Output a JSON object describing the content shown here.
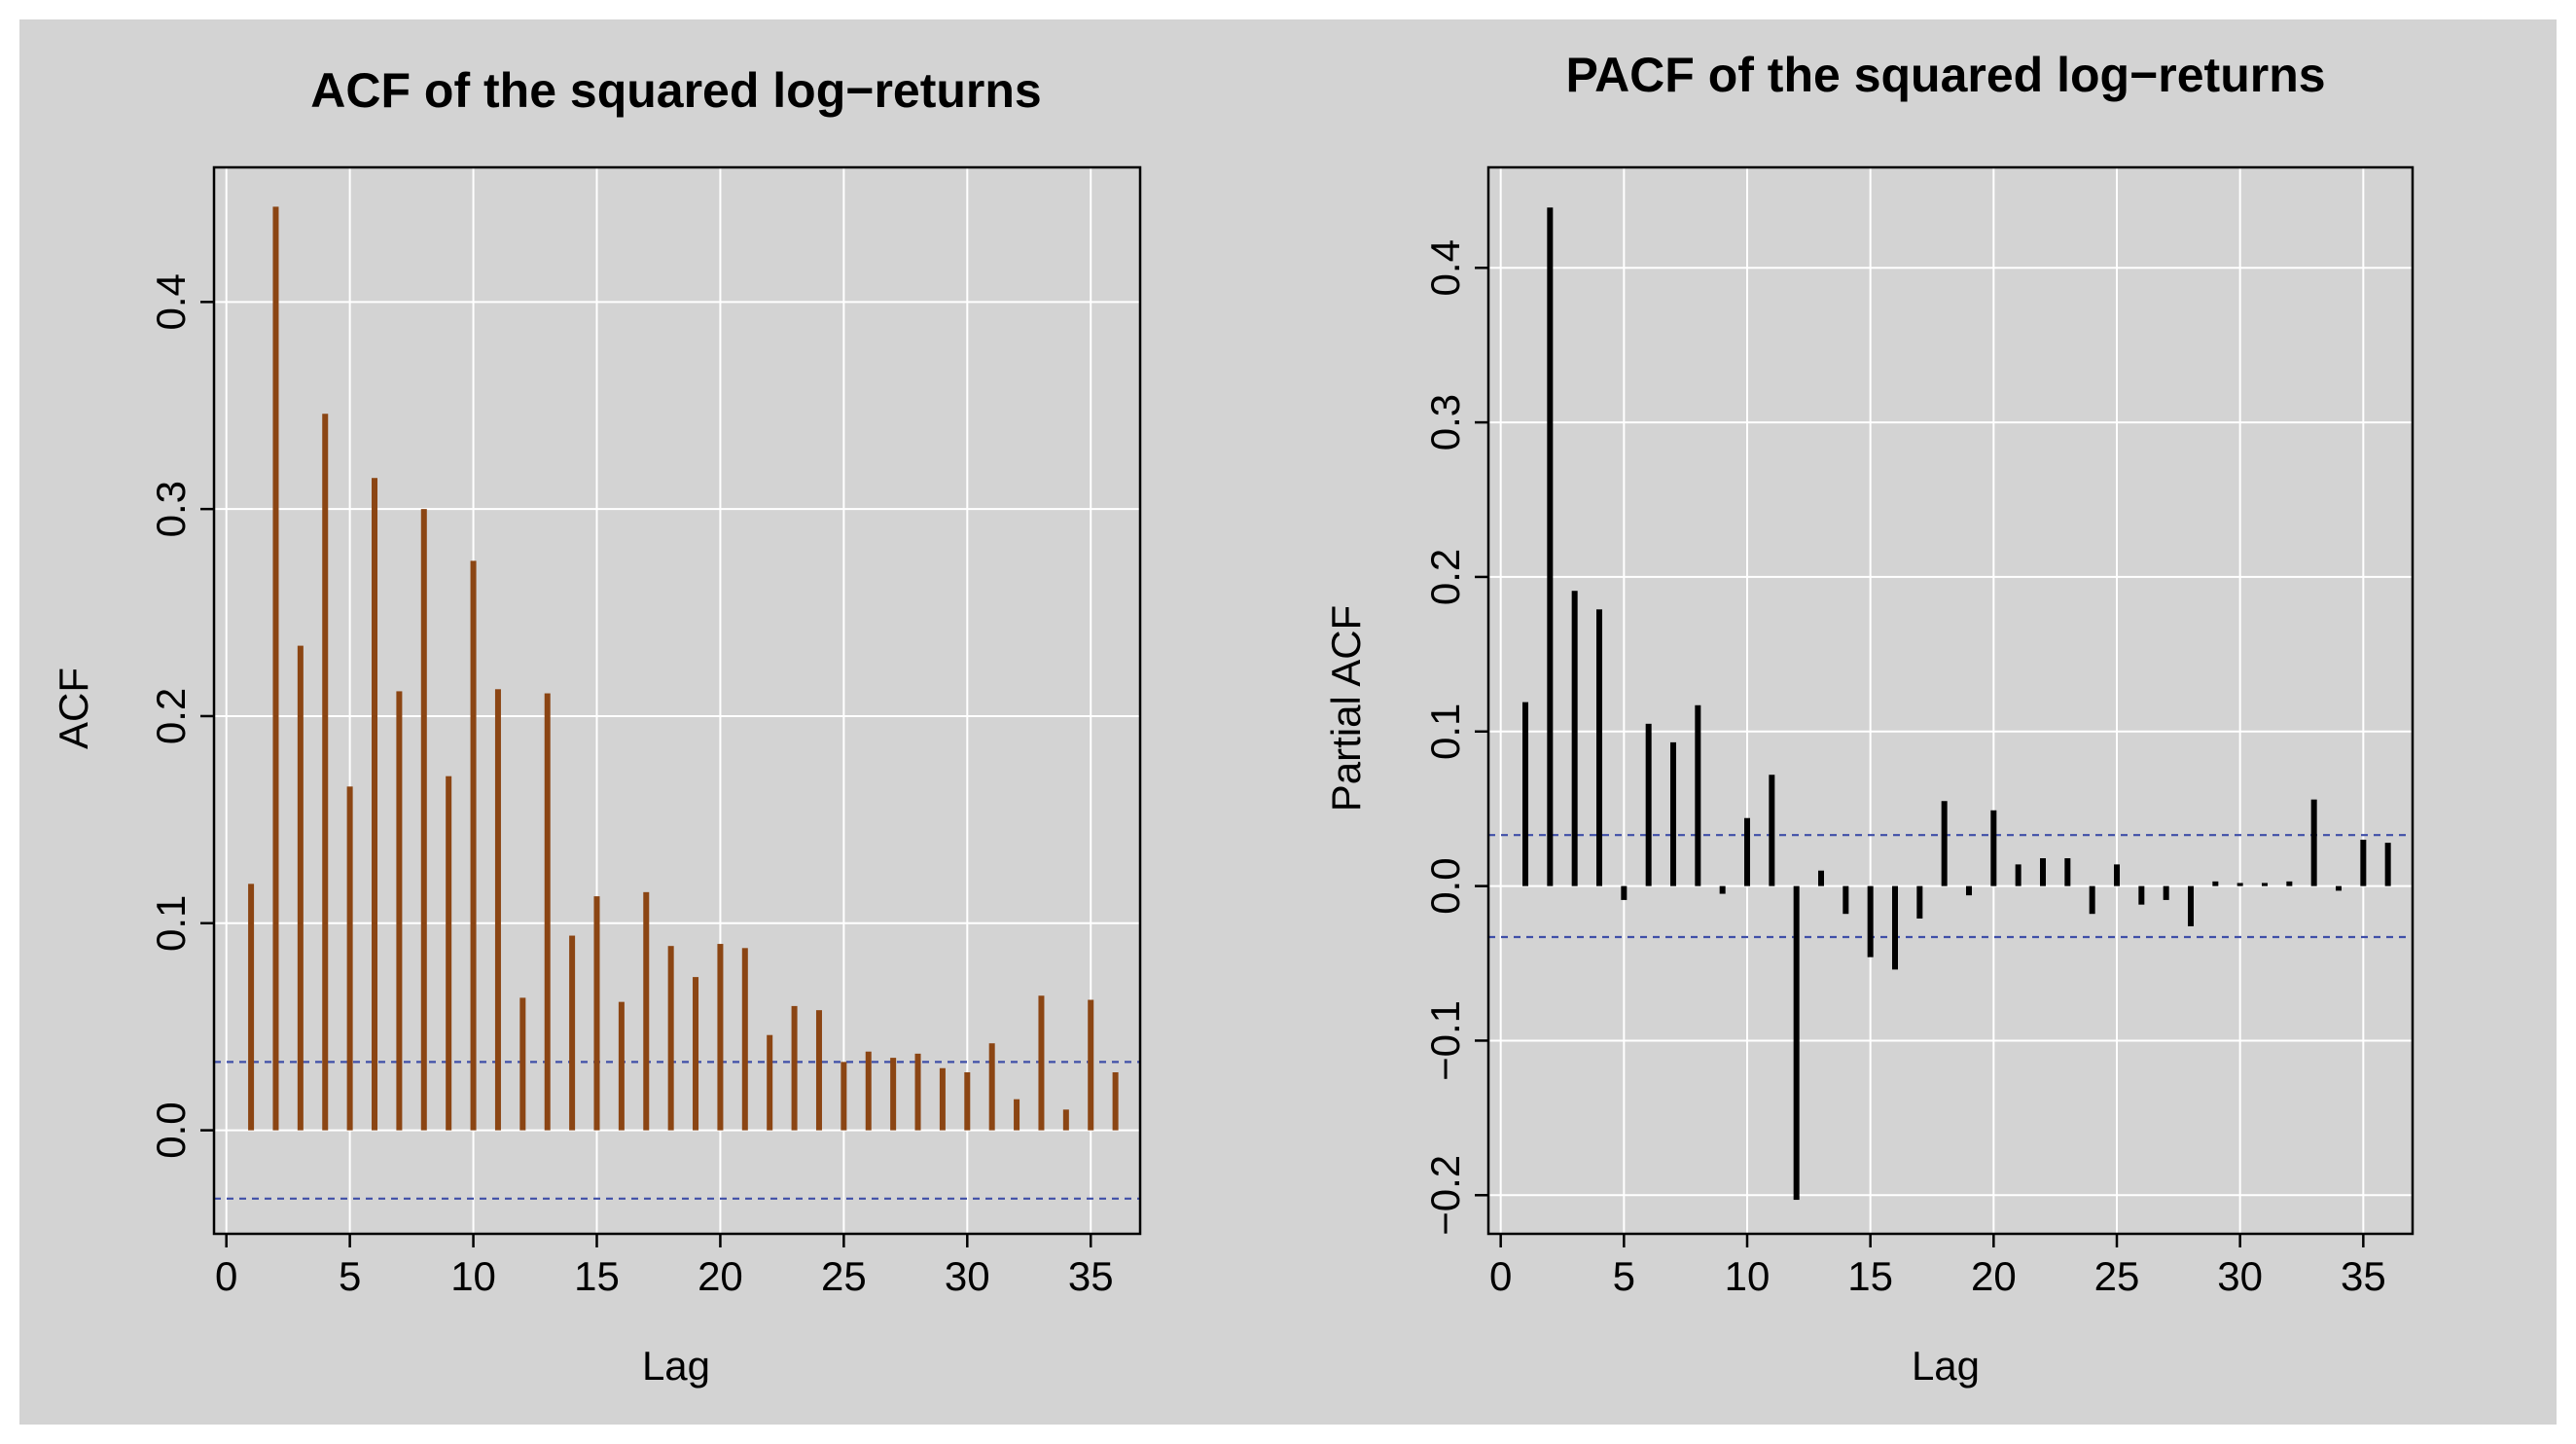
{
  "theme": {
    "page_bg": "#ffffff",
    "figure_bg": "#d3d3d3",
    "grid_color": "#ffffff",
    "acf_bar_color": "#8b4513",
    "pacf_bar_color": "#000000",
    "ci_color": "#3f4fa8"
  },
  "chart_data": [
    {
      "type": "bar",
      "title": "ACF of the squared log−returns",
      "xlabel": "Lag",
      "ylabel": "ACF",
      "xlim": [
        -0.5,
        37
      ],
      "ylim": [
        -0.05,
        0.465
      ],
      "xticks": [
        0,
        5,
        10,
        15,
        20,
        25,
        30,
        35
      ],
      "xtick_labels": [
        "0",
        "5",
        "10",
        "15",
        "20",
        "25",
        "30",
        "35"
      ],
      "yticks": [
        0.0,
        0.1,
        0.2,
        0.3,
        0.4
      ],
      "ytick_labels": [
        "0.0",
        "0.1",
        "0.2",
        "0.3",
        "0.4"
      ],
      "grid": true,
      "confidence_band": 0.033,
      "lags": [
        1,
        2,
        3,
        4,
        5,
        6,
        7,
        8,
        9,
        10,
        11,
        12,
        13,
        14,
        15,
        16,
        17,
        18,
        19,
        20,
        21,
        22,
        23,
        24,
        25,
        26,
        27,
        28,
        29,
        30,
        31,
        32,
        33,
        34,
        35,
        36
      ],
      "values": [
        0.119,
        0.446,
        0.234,
        0.346,
        0.166,
        0.315,
        0.212,
        0.3,
        0.171,
        0.275,
        0.213,
        0.064,
        0.211,
        0.094,
        0.113,
        0.062,
        0.115,
        0.089,
        0.074,
        0.09,
        0.088,
        0.046,
        0.06,
        0.058,
        0.033,
        0.038,
        0.035,
        0.037,
        0.03,
        0.028,
        0.042,
        0.015,
        0.065,
        0.01,
        0.063,
        0.028
      ]
    },
    {
      "type": "bar",
      "title": "PACF of the squared log−returns",
      "xlabel": "Lag",
      "ylabel": "Partial ACF",
      "xlim": [
        -0.5,
        37
      ],
      "ylim": [
        -0.225,
        0.465
      ],
      "xticks": [
        0,
        5,
        10,
        15,
        20,
        25,
        30,
        35
      ],
      "xtick_labels": [
        "0",
        "5",
        "10",
        "15",
        "20",
        "25",
        "30",
        "35"
      ],
      "yticks": [
        -0.2,
        -0.1,
        0.0,
        0.1,
        0.2,
        0.3,
        0.4
      ],
      "ytick_labels": [
        "−0.2",
        "−0.1",
        "0.0",
        "0.1",
        "0.2",
        "0.3",
        "0.4"
      ],
      "grid": true,
      "confidence_band": 0.033,
      "lags": [
        1,
        2,
        3,
        4,
        5,
        6,
        7,
        8,
        9,
        10,
        11,
        12,
        13,
        14,
        15,
        16,
        17,
        18,
        19,
        20,
        21,
        22,
        23,
        24,
        25,
        26,
        27,
        28,
        29,
        30,
        31,
        32,
        33,
        34,
        35,
        36
      ],
      "values": [
        0.119,
        0.439,
        0.191,
        0.179,
        -0.009,
        0.105,
        0.093,
        0.117,
        -0.005,
        0.044,
        0.072,
        -0.203,
        0.01,
        -0.018,
        -0.046,
        -0.054,
        -0.021,
        0.055,
        -0.006,
        0.049,
        0.014,
        0.018,
        0.018,
        -0.018,
        0.014,
        -0.012,
        -0.009,
        -0.026,
        0.003,
        0.002,
        0.002,
        0.003,
        0.056,
        -0.003,
        0.03,
        0.028
      ]
    }
  ]
}
